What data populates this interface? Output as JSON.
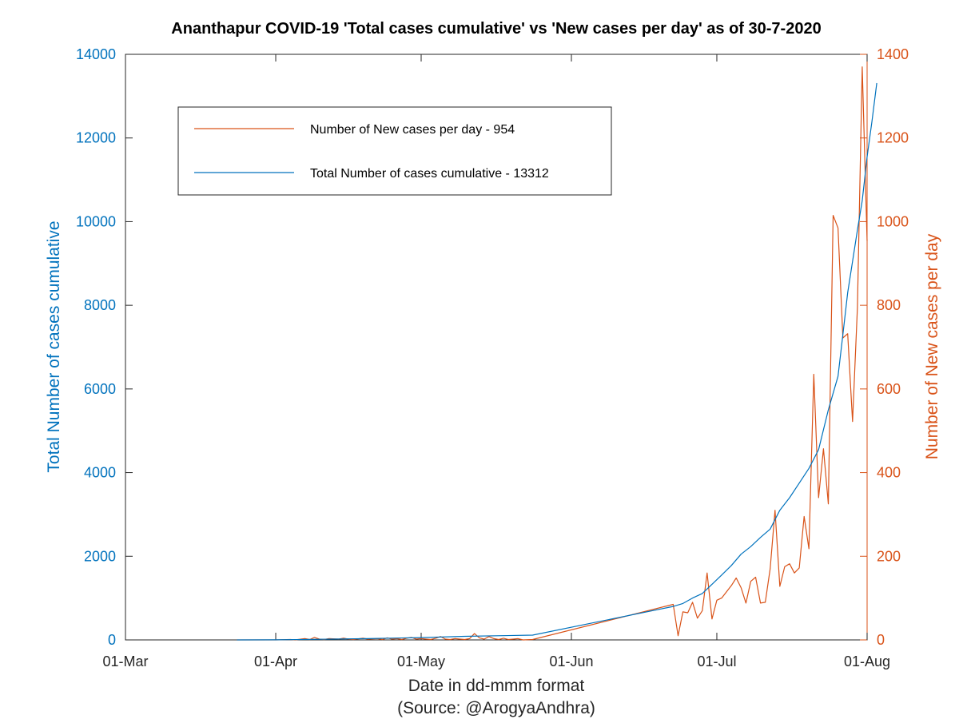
{
  "chart_data": {
    "type": "line",
    "title": "Ananthapur COVID-19 'Total cases cumulative' vs 'New cases per day' as of 30-7-2020",
    "xlabel": "Date in dd-mmm format",
    "xlabel_source": "(Source: @ArogyaAndhra)",
    "ylabel_left": "Total Number of cases cumulative",
    "ylabel_right": "Number of New cases per day",
    "x_ticks": [
      "01-Mar",
      "01-Apr",
      "01-May",
      "01-Jun",
      "01-Jul",
      "01-Aug"
    ],
    "xlim": [
      "2020-03-01",
      "2020-08-01"
    ],
    "ylim_left": [
      0,
      14000
    ],
    "ylim_right": [
      0,
      1400
    ],
    "yticks_left": [
      "0",
      "2000",
      "4000",
      "6000",
      "8000",
      "10000",
      "12000",
      "14000"
    ],
    "yticks_right": [
      "0",
      "200",
      "400",
      "600",
      "800",
      "1000",
      "1200",
      "1400"
    ],
    "legend_position": "top-left inside",
    "colors": {
      "new_cases": "#d95319",
      "cumulative": "#0072bd"
    },
    "series": [
      {
        "name": "Number of New cases per day - 954",
        "axis": "right",
        "color": "#d95319",
        "points": [
          [
            "2020-03-24",
            0
          ],
          [
            "2020-04-01",
            0
          ],
          [
            "2020-04-04",
            1
          ],
          [
            "2020-04-05",
            0
          ],
          [
            "2020-04-07",
            3
          ],
          [
            "2020-04-08",
            1
          ],
          [
            "2020-04-09",
            6
          ],
          [
            "2020-04-10",
            2
          ],
          [
            "2020-04-11",
            1
          ],
          [
            "2020-04-12",
            3
          ],
          [
            "2020-04-14",
            2
          ],
          [
            "2020-04-15",
            4
          ],
          [
            "2020-04-16",
            2
          ],
          [
            "2020-04-17",
            1
          ],
          [
            "2020-04-19",
            4
          ],
          [
            "2020-04-20",
            2
          ],
          [
            "2020-04-22",
            3
          ],
          [
            "2020-04-23",
            1
          ],
          [
            "2020-04-24",
            5
          ],
          [
            "2020-04-25",
            2
          ],
          [
            "2020-04-26",
            3
          ],
          [
            "2020-04-27",
            1
          ],
          [
            "2020-04-28",
            4
          ],
          [
            "2020-04-29",
            6
          ],
          [
            "2020-04-30",
            2
          ],
          [
            "2020-05-01",
            3
          ],
          [
            "2020-05-02",
            2
          ],
          [
            "2020-05-03",
            1
          ],
          [
            "2020-05-04",
            4
          ],
          [
            "2020-05-05",
            8
          ],
          [
            "2020-05-06",
            2
          ],
          [
            "2020-05-07",
            1
          ],
          [
            "2020-05-08",
            3
          ],
          [
            "2020-05-09",
            2
          ],
          [
            "2020-05-10",
            1
          ],
          [
            "2020-05-11",
            3
          ],
          [
            "2020-05-12",
            15
          ],
          [
            "2020-05-13",
            5
          ],
          [
            "2020-05-14",
            2
          ],
          [
            "2020-05-15",
            8
          ],
          [
            "2020-05-16",
            3
          ],
          [
            "2020-05-17",
            1
          ],
          [
            "2020-05-18",
            4
          ],
          [
            "2020-05-19",
            1
          ],
          [
            "2020-05-20",
            2
          ],
          [
            "2020-05-21",
            3
          ],
          [
            "2020-05-22",
            0
          ],
          [
            "2020-05-24",
            1
          ],
          [
            "2020-06-22",
            85
          ],
          [
            "2020-06-23",
            10
          ],
          [
            "2020-06-24",
            67
          ],
          [
            "2020-06-25",
            65
          ],
          [
            "2020-06-26",
            90
          ],
          [
            "2020-06-27",
            52
          ],
          [
            "2020-06-28",
            70
          ],
          [
            "2020-06-29",
            160
          ],
          [
            "2020-06-30",
            50
          ],
          [
            "2020-07-01",
            95
          ],
          [
            "2020-07-02",
            100
          ],
          [
            "2020-07-03",
            115
          ],
          [
            "2020-07-04",
            130
          ],
          [
            "2020-07-05",
            148
          ],
          [
            "2020-07-06",
            125
          ],
          [
            "2020-07-07",
            88
          ],
          [
            "2020-07-08",
            140
          ],
          [
            "2020-07-09",
            150
          ],
          [
            "2020-07-10",
            88
          ],
          [
            "2020-07-11",
            90
          ],
          [
            "2020-07-12",
            170
          ],
          [
            "2020-07-13",
            310
          ],
          [
            "2020-07-14",
            128
          ],
          [
            "2020-07-15",
            175
          ],
          [
            "2020-07-16",
            182
          ],
          [
            "2020-07-17",
            160
          ],
          [
            "2020-07-18",
            172
          ],
          [
            "2020-07-19",
            295
          ],
          [
            "2020-07-20",
            218
          ],
          [
            "2020-07-21",
            635
          ],
          [
            "2020-07-22",
            340
          ],
          [
            "2020-07-23",
            457
          ],
          [
            "2020-07-24",
            325
          ],
          [
            "2020-07-25",
            1015
          ],
          [
            "2020-07-26",
            985
          ],
          [
            "2020-07-27",
            722
          ],
          [
            "2020-07-28",
            732
          ],
          [
            "2020-07-29",
            522
          ],
          [
            "2020-07-30",
            795
          ],
          [
            "2020-07-31",
            1370
          ],
          [
            "2020-08-01",
            954
          ]
        ]
      },
      {
        "name": "Total Number of cases cumulative - 13312",
        "axis": "left",
        "color": "#0072bd",
        "points": [
          [
            "2020-03-24",
            0
          ],
          [
            "2020-04-01",
            2
          ],
          [
            "2020-04-10",
            15
          ],
          [
            "2020-04-20",
            30
          ],
          [
            "2020-05-01",
            55
          ],
          [
            "2020-05-10",
            85
          ],
          [
            "2020-05-24",
            115
          ],
          [
            "2020-06-22",
            800
          ],
          [
            "2020-06-24",
            870
          ],
          [
            "2020-06-26",
            1000
          ],
          [
            "2020-06-28",
            1110
          ],
          [
            "2020-06-30",
            1330
          ],
          [
            "2020-07-02",
            1550
          ],
          [
            "2020-07-04",
            1780
          ],
          [
            "2020-07-06",
            2050
          ],
          [
            "2020-07-08",
            2230
          ],
          [
            "2020-07-10",
            2450
          ],
          [
            "2020-07-12",
            2650
          ],
          [
            "2020-07-14",
            3100
          ],
          [
            "2020-07-16",
            3400
          ],
          [
            "2020-07-18",
            3750
          ],
          [
            "2020-07-20",
            4100
          ],
          [
            "2020-07-22",
            4550
          ],
          [
            "2020-07-24",
            5500
          ],
          [
            "2020-07-26",
            6300
          ],
          [
            "2020-07-27",
            7300
          ],
          [
            "2020-07-28",
            8300
          ],
          [
            "2020-07-29",
            9050
          ],
          [
            "2020-07-30",
            9800
          ],
          [
            "2020-07-31",
            10500
          ],
          [
            "2020-08-01",
            11550
          ],
          [
            "2020-08-02",
            12400
          ],
          [
            "2020-08-03",
            13312
          ]
        ]
      }
    ]
  }
}
